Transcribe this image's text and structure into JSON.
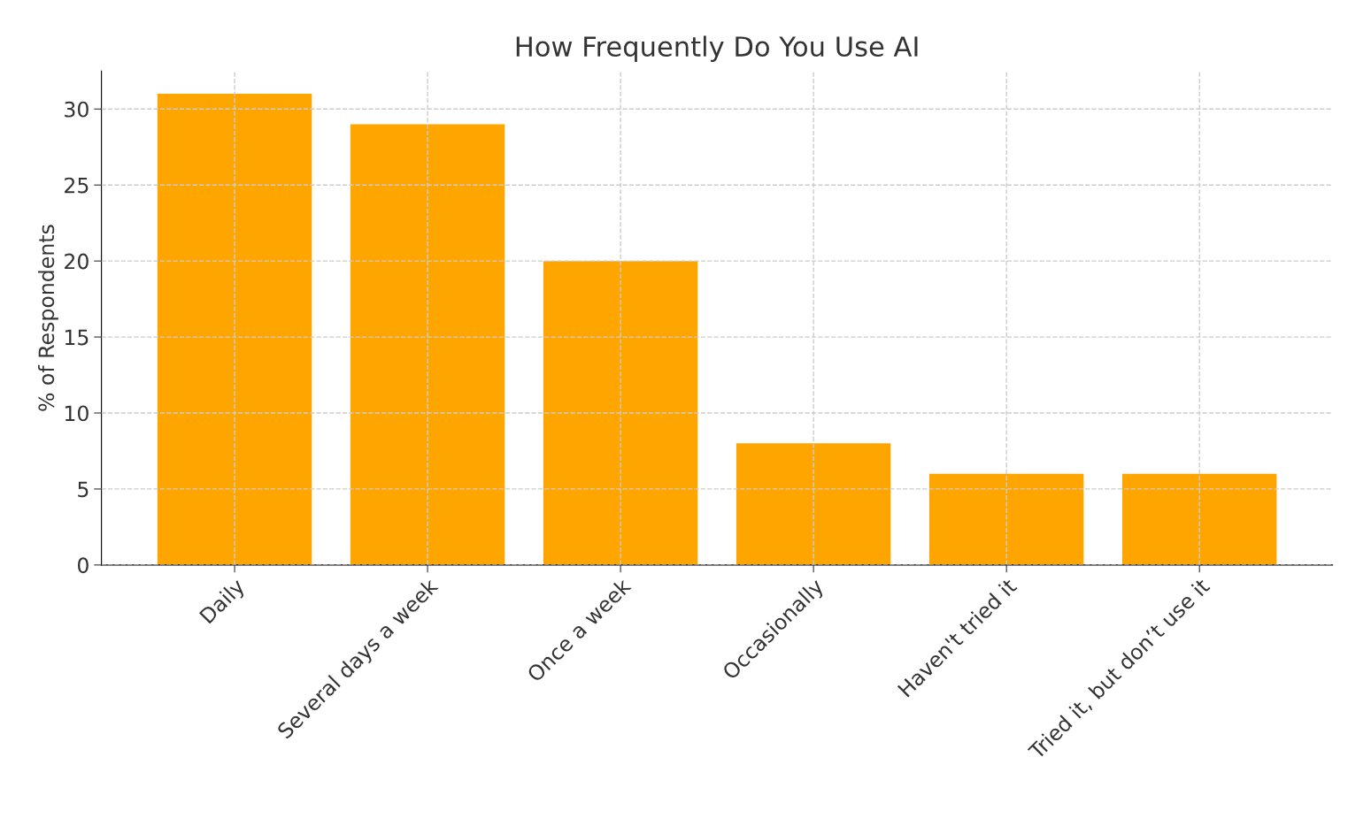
{
  "chart_data": {
    "type": "bar",
    "title": "How Frequently Do You Use AI",
    "ylabel": "% of Respondents",
    "categories": [
      "Daily",
      "Several days a week",
      "Once a week",
      "Occasionally",
      "Haven't tried it",
      "Tried it, but don’t use it"
    ],
    "values": [
      31,
      29,
      20,
      8,
      6,
      6
    ],
    "color": "#ffa500",
    "ylim": [
      0,
      32.5
    ],
    "yticks": [
      0,
      5,
      10,
      15,
      20,
      25,
      30
    ],
    "grid": true
  }
}
